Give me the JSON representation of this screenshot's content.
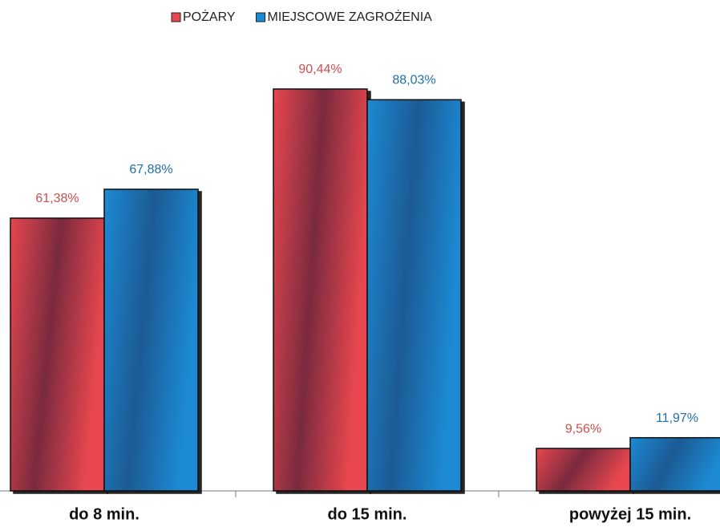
{
  "chart_data": {
    "type": "bar",
    "categories": [
      "do 8 min.",
      "do 15 min.",
      "powyżej 15 min."
    ],
    "series": [
      {
        "name": "POŻARY",
        "color": "#e8474f",
        "label_color": "#c9504f",
        "values": [
          61.38,
          90.44,
          9.56
        ],
        "value_labels": [
          "61,38%",
          "90,44%",
          "9,56%"
        ]
      },
      {
        "name": "MIEJSCOWE ZAGROŻENIA",
        "color": "#1a8ad4",
        "label_color": "#1f6fa8",
        "values": [
          67.88,
          88.03,
          11.97
        ],
        "value_labels": [
          "67,88%",
          "88,03%",
          "11,97%"
        ]
      }
    ],
    "ylim": [
      0,
      100
    ],
    "legend": "top"
  }
}
